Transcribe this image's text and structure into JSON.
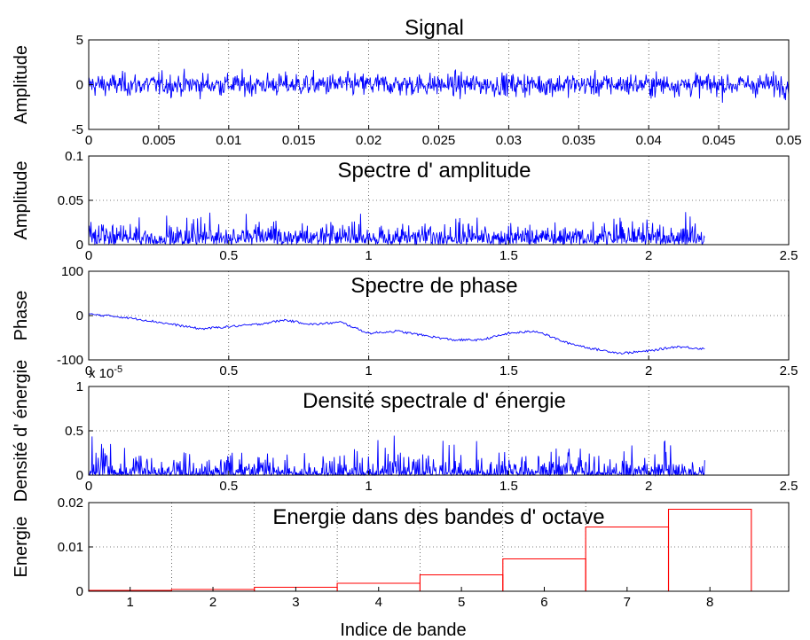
{
  "chart_data": [
    {
      "type": "line",
      "title": "Signal",
      "xlabel": "",
      "ylabel": "Amplitude",
      "xlim": [
        0,
        0.05
      ],
      "ylim": [
        -5,
        5
      ],
      "xticks": [
        "0",
        "0.005",
        "0.01",
        "0.015",
        "0.02",
        "0.025",
        "0.03",
        "0.035",
        "0.04",
        "0.045",
        "0.05"
      ],
      "yticks": [
        "-5",
        "0",
        "5"
      ],
      "grid": true,
      "series": [
        {
          "style": "noise",
          "n_points": 1100,
          "x_range": [
            0,
            0.05
          ],
          "mean": 0,
          "std": 0.9,
          "color": "#0000ff"
        }
      ]
    },
    {
      "type": "line",
      "title": "Spectre d'  amplitude",
      "xlabel": "",
      "ylabel": "Amplitude",
      "xlim": [
        0,
        2.5
      ],
      "ylim": [
        0,
        0.1
      ],
      "xticks": [
        "0",
        "0.5",
        "1",
        "1.5",
        "2",
        "2.5"
      ],
      "yticks": [
        "0",
        "0.05",
        "0.1"
      ],
      "grid": true,
      "series": [
        {
          "style": "abs-noise",
          "n_points": 1100,
          "x_range": [
            0,
            2.2
          ],
          "mean": 0.018,
          "max": 0.05,
          "color": "#0000ff"
        }
      ]
    },
    {
      "type": "line",
      "title": "Spectre de phase",
      "xlabel": "",
      "ylabel": "Phase",
      "xlim": [
        0,
        2.5
      ],
      "ylim": [
        -100,
        100
      ],
      "xticks": [
        "0",
        "0.5",
        "1",
        "1.5",
        "2",
        "2.5"
      ],
      "yticks": [
        "-100",
        "0",
        "100"
      ],
      "grid": true,
      "series": [
        {
          "style": "trend",
          "x": [
            0,
            0.1,
            0.2,
            0.3,
            0.4,
            0.5,
            0.6,
            0.7,
            0.8,
            0.9,
            1.0,
            1.1,
            1.2,
            1.3,
            1.4,
            1.5,
            1.6,
            1.7,
            1.8,
            1.9,
            2.0,
            2.1,
            2.2
          ],
          "y": [
            3,
            -2,
            -10,
            -20,
            -30,
            -25,
            -20,
            -10,
            -20,
            -15,
            -40,
            -35,
            -45,
            -55,
            -55,
            -40,
            -35,
            -60,
            -75,
            -85,
            -80,
            -70,
            -75
          ],
          "color": "#0000ff"
        }
      ]
    },
    {
      "type": "line",
      "title": "Densité spectrale d'  énergie",
      "xlabel": "",
      "ylabel": "Densité d'  énergie",
      "scale_note": "x 10-5",
      "xlim": [
        0,
        2.5
      ],
      "ylim": [
        0,
        1
      ],
      "xticks": [
        "0",
        "0.5",
        "1",
        "1.5",
        "2",
        "2.5"
      ],
      "yticks": [
        "0",
        "0.5",
        "1"
      ],
      "grid": true,
      "series": [
        {
          "style": "squared-noise",
          "n_points": 1100,
          "x_range": [
            0,
            2.2
          ],
          "mean": 0.12,
          "max": 0.65,
          "color": "#0000ff"
        }
      ]
    },
    {
      "type": "bar",
      "title": "Energie dans des bandes d'  octave",
      "xlabel": "Indice de bande",
      "ylabel": "Energie",
      "ylim": [
        0,
        0.02
      ],
      "yticks": [
        "0",
        "0.01",
        "0.02"
      ],
      "grid": true,
      "categories": [
        "1",
        "2",
        "3",
        "4",
        "5",
        "6",
        "7",
        "8"
      ],
      "edges": [
        1,
        2,
        4,
        8,
        16,
        32,
        64,
        128,
        256
      ],
      "xlim_edges": [
        1,
        350
      ],
      "values": [
        0.0002,
        0.0004,
        0.0009,
        0.0018,
        0.0037,
        0.0073,
        0.0145,
        0.0185
      ],
      "color": "#ff0000"
    }
  ]
}
